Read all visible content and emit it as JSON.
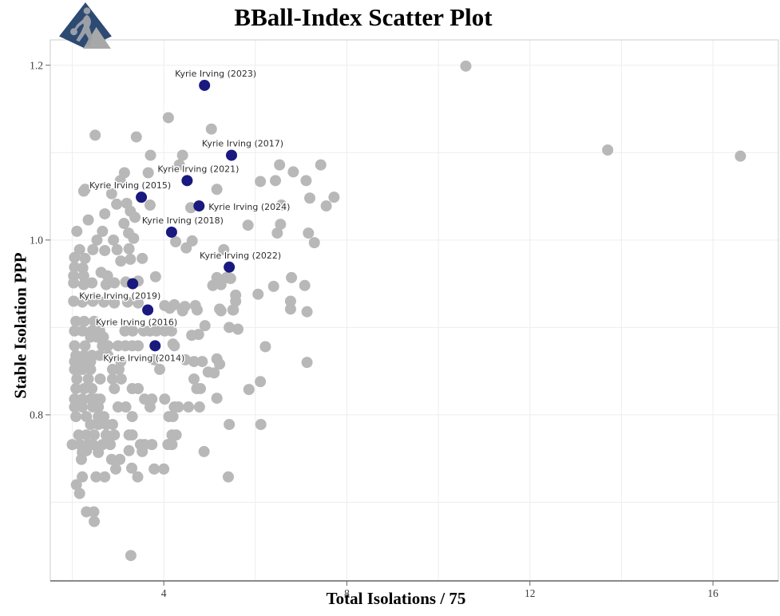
{
  "header": {
    "title": "BBall-Index Scatter Plot"
  },
  "logo": {
    "name": "bball-index-logo",
    "diamond_color": "#2d4a73",
    "silhouette_color": "#9aa0a6",
    "triangle_color": "#a8a8a8"
  },
  "chart_data": {
    "type": "scatter",
    "title": "BBall-Index Scatter Plot",
    "xlabel": "Total Isolations / 75",
    "ylabel": "Stable Isolation PPP",
    "xlim": [
      1.52,
      17.43
    ],
    "ylim": [
      0.61,
      1.229
    ],
    "grid": true,
    "legend_position": "none",
    "x_gridlines": [
      2,
      4,
      6,
      8,
      10,
      12,
      14,
      16
    ],
    "y_gridlines": [
      0.7,
      0.8,
      0.9,
      1.0,
      1.1,
      1.2
    ],
    "x_ticks": [
      {
        "v": 4,
        "label": "4"
      },
      {
        "v": 8,
        "label": "8"
      },
      {
        "v": 12,
        "label": "12"
      },
      {
        "v": 16,
        "label": "16"
      }
    ],
    "y_ticks": [
      {
        "v": 0.8,
        "label": "0.8"
      },
      {
        "v": 1.0,
        "label": "1.0"
      },
      {
        "v": 1.2,
        "label": "1.2"
      }
    ],
    "colors": {
      "background_points": "#b8b8b8",
      "highlight_points": "#191980",
      "gridline": "#ededed",
      "panel_border": "#cccccc",
      "axis_line": "#8a8a8a"
    },
    "series": [
      {
        "name": "league-players",
        "color": "#b8b8b8",
        "points": [
          [
            4.1,
            1.14
          ],
          [
            2.5,
            1.12
          ],
          [
            3.4,
            1.118
          ],
          [
            5.04,
            1.127
          ],
          [
            3.71,
            1.097
          ],
          [
            4.41,
            1.097
          ],
          [
            4.34,
            1.086
          ],
          [
            3.14,
            1.077
          ],
          [
            3.66,
            1.077
          ],
          [
            3.05,
            1.068
          ],
          [
            2.28,
            1.058
          ],
          [
            5.16,
            1.058
          ],
          [
            6.53,
            1.086
          ],
          [
            6.83,
            1.078
          ],
          [
            7.43,
            1.086
          ],
          [
            6.11,
            1.067
          ],
          [
            6.44,
            1.068
          ],
          [
            7.11,
            1.068
          ],
          [
            7.19,
            1.048
          ],
          [
            7.72,
            1.049
          ],
          [
            7.55,
            1.039
          ],
          [
            6.57,
            1.04
          ],
          [
            10.6,
            1.199
          ],
          [
            13.7,
            1.103
          ],
          [
            16.6,
            1.096
          ],
          [
            2.25,
            1.056
          ],
          [
            2.86,
            1.053
          ],
          [
            2.97,
            1.041
          ],
          [
            3.19,
            1.042
          ],
          [
            3.7,
            1.04
          ],
          [
            4.59,
            1.037
          ],
          [
            2.71,
            1.03
          ],
          [
            3.27,
            1.033
          ],
          [
            3.37,
            1.026
          ],
          [
            2.35,
            1.023
          ],
          [
            3.13,
            1.019
          ],
          [
            5.84,
            1.017
          ],
          [
            6.55,
            1.018
          ],
          [
            2.1,
            1.01
          ],
          [
            2.66,
            1.01
          ],
          [
            3.23,
            1.008
          ],
          [
            6.48,
            1.008
          ],
          [
            7.16,
            1.008
          ],
          [
            2.54,
            1.0
          ],
          [
            2.9,
            1.0
          ],
          [
            3.34,
            1.002
          ],
          [
            4.26,
            0.998
          ],
          [
            4.49,
            0.991
          ],
          [
            4.62,
            0.999
          ],
          [
            7.29,
            0.997
          ],
          [
            2.16,
            0.989
          ],
          [
            2.45,
            0.989
          ],
          [
            2.71,
            0.988
          ],
          [
            2.98,
            0.989
          ],
          [
            3.24,
            0.99
          ],
          [
            5.31,
            0.989
          ],
          [
            2.05,
            0.98
          ],
          [
            2.28,
            0.979
          ],
          [
            3.06,
            0.976
          ],
          [
            3.27,
            0.978
          ],
          [
            3.53,
            0.979
          ],
          [
            2.05,
            0.969
          ],
          [
            2.23,
            0.968
          ],
          [
            2.63,
            0.963
          ],
          [
            2.77,
            0.959
          ],
          [
            5.16,
            0.957
          ],
          [
            5.37,
            0.957
          ],
          [
            5.46,
            0.956
          ],
          [
            6.79,
            0.957
          ],
          [
            2.92,
            0.951
          ],
          [
            3.17,
            0.952
          ],
          [
            3.44,
            0.953
          ],
          [
            3.82,
            0.958
          ],
          [
            2.03,
            0.959
          ],
          [
            2.25,
            0.959
          ],
          [
            2.03,
            0.951
          ],
          [
            2.25,
            0.949
          ],
          [
            2.43,
            0.951
          ],
          [
            2.74,
            0.949
          ],
          [
            5.07,
            0.948
          ],
          [
            5.25,
            0.949
          ],
          [
            7.08,
            0.948
          ],
          [
            6.4,
            0.947
          ],
          [
            5.57,
            0.937
          ],
          [
            6.06,
            0.938
          ],
          [
            2.03,
            0.93
          ],
          [
            2.22,
            0.929
          ],
          [
            2.45,
            0.93
          ],
          [
            2.69,
            0.929
          ],
          [
            2.92,
            0.928
          ],
          [
            3.21,
            0.929
          ],
          [
            3.44,
            0.928
          ],
          [
            4.02,
            0.925
          ],
          [
            4.23,
            0.926
          ],
          [
            4.46,
            0.924
          ],
          [
            4.69,
            0.925
          ],
          [
            5.57,
            0.93
          ],
          [
            6.77,
            0.93
          ],
          [
            4.13,
            0.922
          ],
          [
            4.41,
            0.919
          ],
          [
            4.73,
            0.92
          ],
          [
            5.25,
            0.919
          ],
          [
            5.51,
            0.92
          ],
          [
            6.77,
            0.921
          ],
          [
            5.22,
            0.921
          ],
          [
            5.52,
            0.92
          ],
          [
            7.13,
            0.918
          ],
          [
            2.08,
            0.907
          ],
          [
            2.26,
            0.907
          ],
          [
            2.48,
            0.907
          ],
          [
            4.9,
            0.902
          ],
          [
            5.43,
            0.9
          ],
          [
            5.62,
            0.898
          ],
          [
            2.05,
            0.896
          ],
          [
            2.22,
            0.896
          ],
          [
            2.43,
            0.896
          ],
          [
            2.6,
            0.896
          ],
          [
            3.15,
            0.896
          ],
          [
            3.32,
            0.896
          ],
          [
            3.56,
            0.896
          ],
          [
            3.7,
            0.896
          ],
          [
            3.84,
            0.896
          ],
          [
            4.02,
            0.896
          ],
          [
            4.17,
            0.896
          ],
          [
            2.4,
            0.889
          ],
          [
            2.54,
            0.889
          ],
          [
            2.68,
            0.889
          ],
          [
            4.61,
            0.891
          ],
          [
            4.76,
            0.892
          ],
          [
            2.05,
            0.879
          ],
          [
            2.28,
            0.879
          ],
          [
            2.66,
            0.879
          ],
          [
            2.78,
            0.879
          ],
          [
            3.0,
            0.879
          ],
          [
            3.16,
            0.879
          ],
          [
            3.31,
            0.879
          ],
          [
            3.44,
            0.879
          ],
          [
            4.2,
            0.881
          ],
          [
            4.23,
            0.879
          ],
          [
            6.22,
            0.878
          ],
          [
            2.08,
            0.868
          ],
          [
            2.26,
            0.868
          ],
          [
            2.43,
            0.868
          ],
          [
            2.6,
            0.868
          ],
          [
            2.78,
            0.868
          ],
          [
            2.05,
            0.861
          ],
          [
            2.22,
            0.861
          ],
          [
            2.4,
            0.861
          ],
          [
            3.06,
            0.861
          ],
          [
            4.66,
            0.861
          ],
          [
            4.84,
            0.861
          ],
          [
            3.79,
            0.863
          ],
          [
            4.47,
            0.863
          ],
          [
            5.16,
            0.864
          ],
          [
            7.13,
            0.86
          ],
          [
            5.22,
            0.858
          ],
          [
            2.05,
            0.852
          ],
          [
            2.22,
            0.852
          ],
          [
            2.4,
            0.852
          ],
          [
            2.88,
            0.852
          ],
          [
            3.02,
            0.852
          ],
          [
            3.91,
            0.852
          ],
          [
            4.97,
            0.849
          ],
          [
            5.1,
            0.848
          ],
          [
            2.1,
            0.841
          ],
          [
            2.35,
            0.841
          ],
          [
            2.61,
            0.841
          ],
          [
            2.88,
            0.841
          ],
          [
            3.07,
            0.841
          ],
          [
            4.66,
            0.841
          ],
          [
            6.11,
            0.838
          ],
          [
            2.08,
            0.83
          ],
          [
            2.26,
            0.83
          ],
          [
            2.43,
            0.83
          ],
          [
            2.92,
            0.83
          ],
          [
            3.31,
            0.83
          ],
          [
            3.44,
            0.83
          ],
          [
            4.72,
            0.83
          ],
          [
            4.8,
            0.83
          ],
          [
            5.86,
            0.829
          ],
          [
            2.05,
            0.818
          ],
          [
            2.22,
            0.818
          ],
          [
            2.4,
            0.818
          ],
          [
            2.52,
            0.818
          ],
          [
            2.61,
            0.818
          ],
          [
            3.58,
            0.818
          ],
          [
            3.74,
            0.818
          ],
          [
            4.02,
            0.818
          ],
          [
            5.16,
            0.819
          ],
          [
            2.05,
            0.809
          ],
          [
            2.22,
            0.809
          ],
          [
            2.45,
            0.809
          ],
          [
            2.57,
            0.809
          ],
          [
            3.0,
            0.809
          ],
          [
            3.17,
            0.809
          ],
          [
            3.7,
            0.809
          ],
          [
            4.23,
            0.809
          ],
          [
            4.32,
            0.809
          ],
          [
            4.54,
            0.809
          ],
          [
            4.78,
            0.809
          ],
          [
            2.08,
            0.798
          ],
          [
            2.31,
            0.798
          ],
          [
            2.57,
            0.798
          ],
          [
            2.69,
            0.798
          ],
          [
            3.31,
            0.798
          ],
          [
            4.11,
            0.798
          ],
          [
            4.2,
            0.798
          ],
          [
            2.4,
            0.789
          ],
          [
            2.57,
            0.789
          ],
          [
            2.74,
            0.789
          ],
          [
            2.88,
            0.789
          ],
          [
            5.43,
            0.789
          ],
          [
            6.12,
            0.789
          ],
          [
            2.14,
            0.777
          ],
          [
            2.31,
            0.777
          ],
          [
            2.48,
            0.777
          ],
          [
            2.74,
            0.777
          ],
          [
            2.92,
            0.777
          ],
          [
            3.24,
            0.777
          ],
          [
            3.31,
            0.777
          ],
          [
            4.18,
            0.777
          ],
          [
            4.27,
            0.777
          ],
          [
            2.0,
            0.766
          ],
          [
            2.17,
            0.766
          ],
          [
            2.35,
            0.766
          ],
          [
            2.45,
            0.766
          ],
          [
            2.66,
            0.766
          ],
          [
            2.83,
            0.766
          ],
          [
            3.49,
            0.766
          ],
          [
            3.58,
            0.766
          ],
          [
            3.74,
            0.766
          ],
          [
            4.09,
            0.766
          ],
          [
            4.18,
            0.766
          ],
          [
            2.22,
            0.757
          ],
          [
            2.31,
            0.759
          ],
          [
            2.57,
            0.757
          ],
          [
            3.24,
            0.759
          ],
          [
            3.53,
            0.758
          ],
          [
            4.88,
            0.758
          ],
          [
            2.2,
            0.749
          ],
          [
            2.86,
            0.749
          ],
          [
            3.04,
            0.749
          ],
          [
            2.95,
            0.738
          ],
          [
            3.3,
            0.739
          ],
          [
            3.79,
            0.738
          ],
          [
            4.0,
            0.738
          ],
          [
            2.22,
            0.729
          ],
          [
            2.52,
            0.729
          ],
          [
            2.71,
            0.729
          ],
          [
            3.43,
            0.729
          ],
          [
            5.41,
            0.729
          ],
          [
            2.09,
            0.72
          ],
          [
            2.16,
            0.71
          ],
          [
            2.31,
            0.689
          ],
          [
            2.47,
            0.689
          ],
          [
            2.48,
            0.678
          ],
          [
            3.28,
            0.639
          ]
        ]
      },
      {
        "name": "kyrie-irving-seasons",
        "color": "#191980",
        "points": [
          {
            "label": "Kyrie Irving (2023)",
            "x": 4.89,
            "y": 1.177,
            "label_pos": "above"
          },
          {
            "label": "Kyrie Irving (2017)",
            "x": 5.48,
            "y": 1.097,
            "label_pos": "above"
          },
          {
            "label": "Kyrie Irving (2021)",
            "x": 4.51,
            "y": 1.068,
            "label_pos": "above"
          },
          {
            "label": "Kyrie Irving (2015)",
            "x": 3.51,
            "y": 1.049,
            "label_pos": "above-left"
          },
          {
            "label": "Kyrie Irving (2024)",
            "x": 4.77,
            "y": 1.039,
            "label_pos": "right"
          },
          {
            "label": "Kyrie Irving (2018)",
            "x": 4.17,
            "y": 1.009,
            "label_pos": "above"
          },
          {
            "label": "Kyrie Irving (2022)",
            "x": 5.43,
            "y": 0.969,
            "label_pos": "above"
          },
          {
            "label": "Kyrie Irving (2019)",
            "x": 3.32,
            "y": 0.95,
            "label_pos": "below-left"
          },
          {
            "label": "Kyrie Irving (2016)",
            "x": 3.65,
            "y": 0.92,
            "label_pos": "below"
          },
          {
            "label": "Kyrie Irving (2014)",
            "x": 3.81,
            "y": 0.879,
            "label_pos": "below"
          }
        ]
      }
    ]
  }
}
